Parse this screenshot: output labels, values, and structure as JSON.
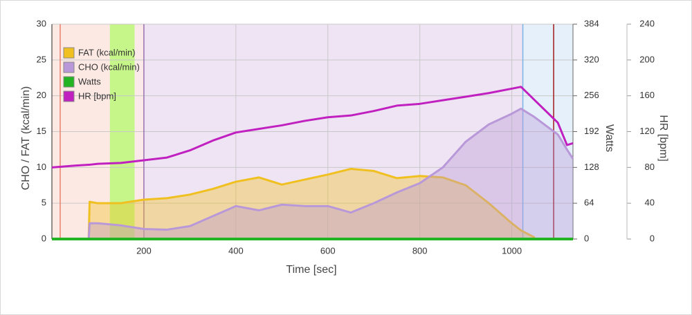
{
  "chart_data": {
    "type": "line",
    "x_label": "Time [sec]",
    "y_label": "CHO / FAT (kcal/min)",
    "y2_label": "Watts",
    "y3_label": "HR [bpm]",
    "x": [
      0,
      50,
      80,
      82,
      100,
      150,
      200,
      250,
      300,
      350,
      400,
      450,
      500,
      550,
      600,
      650,
      700,
      750,
      800,
      850,
      900,
      950,
      1000,
      1020,
      1050,
      1100,
      1120,
      1133
    ],
    "xlim": [
      0,
      1133
    ],
    "xticks": [
      200,
      400,
      600,
      800,
      1000
    ],
    "ylim": [
      0,
      30
    ],
    "yticks": [
      0,
      5,
      10,
      15,
      20,
      25,
      30
    ],
    "y2lim": [
      0,
      384
    ],
    "y2ticks": [
      0,
      64,
      128,
      192,
      256,
      320,
      384
    ],
    "y3lim": [
      0,
      240
    ],
    "y3ticks": [
      0,
      40,
      80,
      120,
      160,
      200,
      240
    ],
    "grid": true,
    "legend": "upper left",
    "zones": [
      {
        "start": 0,
        "end": 126,
        "color": "#fde9e4"
      },
      {
        "start": 126,
        "end": 180,
        "color": "#c6f58a"
      },
      {
        "start": 180,
        "end": 200,
        "color": "#fbe9ea"
      },
      {
        "start": 200,
        "end": 1024,
        "color": "#efe4f3"
      },
      {
        "start": 1024,
        "end": 1133,
        "color": "#e6f0fb"
      }
    ],
    "markers": [
      {
        "x": 18,
        "color": "#e8806c"
      },
      {
        "x": 200,
        "color": "#9a70b0"
      },
      {
        "x": 1024,
        "color": "#7ab4e6"
      },
      {
        "x": 1091,
        "color": "#a01818"
      }
    ],
    "series": [
      {
        "name": "FAT (kcal/min)",
        "color": "#f0c020",
        "fill": true,
        "values": [
          0,
          0,
          0,
          5.2,
          5.0,
          5.0,
          5.5,
          5.7,
          6.2,
          7.0,
          8.0,
          8.6,
          7.6,
          8.3,
          9.0,
          9.8,
          9.5,
          8.5,
          8.8,
          8.6,
          7.5,
          5.0,
          2.2,
          1.2,
          0.2,
          null,
          null,
          null
        ]
      },
      {
        "name": "CHO (kcal/min)",
        "color": "#b898d8",
        "fill": true,
        "values": [
          0,
          0,
          0,
          2.2,
          2.2,
          1.9,
          1.4,
          1.3,
          1.8,
          3.2,
          4.6,
          4.0,
          4.8,
          4.6,
          4.6,
          3.7,
          5.0,
          6.5,
          7.8,
          10.0,
          13.6,
          16.0,
          17.5,
          18.2,
          17.0,
          14.6,
          12.5,
          11.2
        ]
      },
      {
        "name": "Watts",
        "color": "#22b422",
        "axis": "y2",
        "values": [
          0,
          0,
          0,
          0,
          0,
          0,
          0,
          0,
          0,
          0,
          0,
          0,
          0,
          0,
          0,
          0,
          0,
          0,
          0,
          0,
          0,
          0,
          0,
          0,
          0,
          0,
          0,
          0
        ]
      },
      {
        "name": "HR [bpm]",
        "color": "#c020c0",
        "axis": "y3",
        "values": [
          80,
          82,
          83,
          83,
          84,
          85,
          88,
          91,
          99,
          110,
          119,
          123,
          127,
          132,
          136,
          138,
          143,
          149,
          151,
          155,
          159,
          163,
          168,
          170,
          155,
          130,
          105,
          107
        ]
      }
    ]
  }
}
